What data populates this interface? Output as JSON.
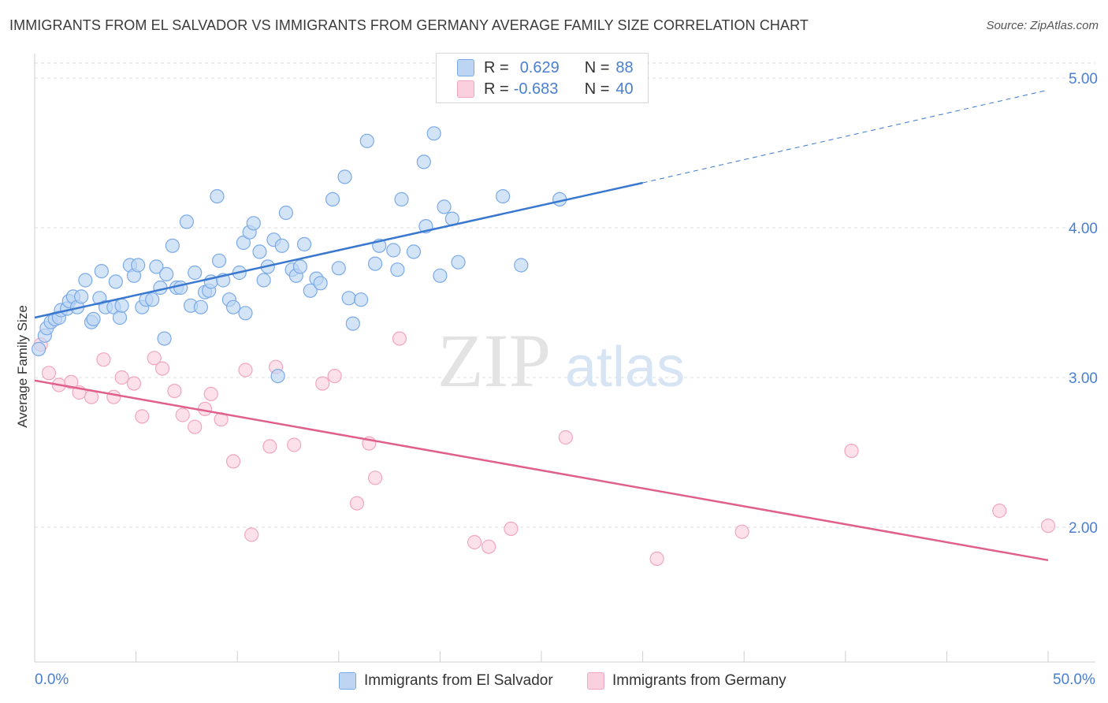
{
  "title": "IMMIGRANTS FROM EL SALVADOR VS IMMIGRANTS FROM GERMANY AVERAGE FAMILY SIZE CORRELATION CHART",
  "source": "Source: ZipAtlas.com",
  "watermark": {
    "zip": "ZIP",
    "atlas": "atlas"
  },
  "legend": {
    "rows": [
      {
        "r_label": "R =",
        "r_value": "0.629",
        "n_label": "N =",
        "n_value": "88"
      },
      {
        "r_label": "R =",
        "r_value": "-0.683",
        "n_label": "N =",
        "n_value": "40"
      }
    ]
  },
  "chart_data": {
    "type": "scatter",
    "title": "IMMIGRANTS FROM EL SALVADOR VS IMMIGRANTS FROM GERMANY AVERAGE FAMILY SIZE CORRELATION CHART",
    "xlabel": "",
    "ylabel": "Average Family Size",
    "xlim": [
      0,
      50
    ],
    "ylim": [
      1.1,
      5.1
    ],
    "x_tick_labels": [
      "0.0%",
      "50.0%"
    ],
    "y_ticks": [
      2.0,
      3.0,
      4.0,
      5.0
    ],
    "y_tick_labels": [
      "2.00",
      "3.00",
      "4.00",
      "5.00"
    ],
    "grid": "horizontal dashed",
    "legend_position": "top-center",
    "series": [
      {
        "name": "Immigrants from El Salvador",
        "color": "#7aaae8",
        "trend_color": "#3a78d0",
        "trend": {
          "x0": 0,
          "y0": 3.4,
          "x1": 30,
          "y1": 4.3,
          "dashed_to_x": 50,
          "dashed_to_y": 4.92
        },
        "points": [
          [
            0.2,
            3.19
          ],
          [
            0.5,
            3.28
          ],
          [
            0.6,
            3.33
          ],
          [
            0.8,
            3.37
          ],
          [
            1.0,
            3.39
          ],
          [
            1.2,
            3.4
          ],
          [
            1.3,
            3.45
          ],
          [
            1.6,
            3.46
          ],
          [
            1.7,
            3.51
          ],
          [
            1.9,
            3.54
          ],
          [
            2.1,
            3.47
          ],
          [
            2.3,
            3.54
          ],
          [
            2.5,
            3.65
          ],
          [
            2.8,
            3.37
          ],
          [
            2.9,
            3.39
          ],
          [
            3.2,
            3.53
          ],
          [
            3.3,
            3.71
          ],
          [
            3.5,
            3.47
          ],
          [
            3.9,
            3.47
          ],
          [
            4.0,
            3.64
          ],
          [
            4.2,
            3.4
          ],
          [
            4.3,
            3.48
          ],
          [
            4.7,
            3.75
          ],
          [
            4.9,
            3.68
          ],
          [
            5.1,
            3.75
          ],
          [
            5.3,
            3.47
          ],
          [
            5.5,
            3.52
          ],
          [
            5.8,
            3.52
          ],
          [
            6.0,
            3.74
          ],
          [
            6.2,
            3.6
          ],
          [
            6.4,
            3.26
          ],
          [
            6.5,
            3.69
          ],
          [
            6.8,
            3.88
          ],
          [
            7.0,
            3.6
          ],
          [
            7.2,
            3.6
          ],
          [
            7.5,
            4.04
          ],
          [
            7.7,
            3.48
          ],
          [
            7.9,
            3.7
          ],
          [
            8.2,
            3.47
          ],
          [
            8.4,
            3.57
          ],
          [
            8.6,
            3.58
          ],
          [
            8.7,
            3.64
          ],
          [
            9.0,
            4.21
          ],
          [
            9.1,
            3.78
          ],
          [
            9.3,
            3.65
          ],
          [
            9.6,
            3.52
          ],
          [
            9.8,
            3.47
          ],
          [
            10.1,
            3.7
          ],
          [
            10.3,
            3.9
          ],
          [
            10.4,
            3.43
          ],
          [
            10.6,
            3.97
          ],
          [
            10.8,
            4.03
          ],
          [
            11.1,
            3.84
          ],
          [
            11.3,
            3.65
          ],
          [
            11.5,
            3.74
          ],
          [
            11.8,
            3.92
          ],
          [
            12.0,
            3.01
          ],
          [
            12.2,
            3.88
          ],
          [
            12.4,
            4.1
          ],
          [
            12.7,
            3.72
          ],
          [
            12.9,
            3.68
          ],
          [
            13.1,
            3.74
          ],
          [
            13.3,
            3.89
          ],
          [
            13.6,
            3.58
          ],
          [
            13.9,
            3.66
          ],
          [
            14.1,
            3.63
          ],
          [
            14.7,
            4.19
          ],
          [
            15.0,
            3.73
          ],
          [
            15.3,
            4.34
          ],
          [
            15.5,
            3.53
          ],
          [
            15.7,
            3.36
          ],
          [
            16.1,
            3.52
          ],
          [
            16.4,
            4.58
          ],
          [
            16.8,
            3.76
          ],
          [
            17.0,
            3.88
          ],
          [
            17.7,
            3.85
          ],
          [
            17.9,
            3.72
          ],
          [
            18.1,
            4.19
          ],
          [
            18.7,
            3.84
          ],
          [
            19.2,
            4.44
          ],
          [
            19.3,
            4.01
          ],
          [
            19.7,
            4.63
          ],
          [
            20.0,
            3.68
          ],
          [
            20.2,
            4.14
          ],
          [
            20.6,
            4.06
          ],
          [
            20.9,
            3.77
          ],
          [
            23.1,
            4.21
          ],
          [
            24.0,
            3.75
          ],
          [
            25.9,
            4.19
          ]
        ]
      },
      {
        "name": "Immigrants from Germany",
        "color": "#f2a6bf",
        "trend_color": "#e0608a",
        "trend": {
          "x0": 0,
          "y0": 2.98,
          "x1": 50,
          "y1": 1.78
        },
        "points": [
          [
            0.3,
            3.22
          ],
          [
            0.7,
            3.03
          ],
          [
            1.2,
            2.95
          ],
          [
            1.8,
            2.97
          ],
          [
            2.2,
            2.9
          ],
          [
            2.8,
            2.87
          ],
          [
            3.4,
            3.12
          ],
          [
            3.9,
            2.87
          ],
          [
            4.3,
            3.0
          ],
          [
            4.9,
            2.96
          ],
          [
            5.3,
            2.74
          ],
          [
            5.9,
            3.13
          ],
          [
            6.3,
            3.06
          ],
          [
            6.9,
            2.91
          ],
          [
            7.3,
            2.75
          ],
          [
            7.9,
            2.67
          ],
          [
            8.4,
            2.79
          ],
          [
            8.7,
            2.89
          ],
          [
            9.2,
            2.72
          ],
          [
            9.8,
            2.44
          ],
          [
            10.4,
            3.05
          ],
          [
            10.7,
            1.95
          ],
          [
            11.6,
            2.54
          ],
          [
            11.9,
            3.07
          ],
          [
            12.8,
            2.55
          ],
          [
            14.2,
            2.96
          ],
          [
            14.8,
            3.01
          ],
          [
            15.9,
            2.16
          ],
          [
            16.5,
            2.56
          ],
          [
            16.8,
            2.33
          ],
          [
            18.0,
            3.26
          ],
          [
            21.7,
            1.9
          ],
          [
            22.4,
            1.87
          ],
          [
            23.5,
            1.99
          ],
          [
            26.2,
            2.6
          ],
          [
            30.7,
            1.79
          ],
          [
            34.9,
            1.97
          ],
          [
            40.3,
            2.51
          ],
          [
            47.6,
            2.11
          ],
          [
            50.0,
            2.01
          ]
        ]
      }
    ]
  }
}
